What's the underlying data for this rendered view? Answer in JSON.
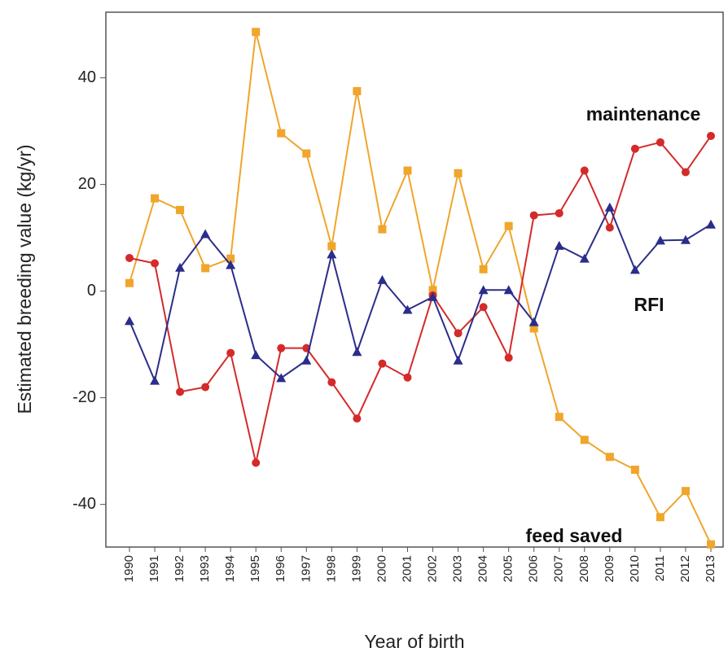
{
  "chart_data": {
    "type": "line",
    "x_label": "Year of birth",
    "y_label": "Estimated breeding value (kg/yr)",
    "categories": [
      "1990",
      "1991",
      "1992",
      "1993",
      "1994",
      "1995",
      "1996",
      "1997",
      "1998",
      "1999",
      "2000",
      "2001",
      "2002",
      "2003",
      "2004",
      "2005",
      "2006",
      "2007",
      "2008",
      "2009",
      "2010",
      "2011",
      "2012",
      "2013"
    ],
    "series": [
      {
        "name": "feed saved",
        "color": "#f0a52c",
        "marker": "square",
        "values": [
          1.5,
          17.4,
          15.2,
          4.3,
          6.1,
          48.6,
          29.6,
          25.8,
          8.4,
          37.5,
          11.6,
          22.6,
          0.2,
          22.1,
          4.1,
          12.2,
          -7,
          -23.6,
          -27.9,
          -31.1,
          -33.5,
          -42.4,
          -37.5,
          -47.5
        ]
      },
      {
        "name": "maintenance",
        "color": "#d42a2a",
        "marker": "circle",
        "values": [
          6.2,
          5.2,
          -18.9,
          -18,
          -11.6,
          -32.2,
          -10.7,
          -10.7,
          -17.1,
          -23.9,
          -13.6,
          -16.2,
          -0.8,
          -7.9,
          -3,
          -12.5,
          14.2,
          14.6,
          22.6,
          11.9,
          26.7,
          27.9,
          22.3,
          29.1
        ]
      },
      {
        "name": "RFI",
        "color": "#2b2d8a",
        "marker": "triangle",
        "values": [
          -5.6,
          -16.8,
          4.4,
          10.7,
          4.9,
          -12,
          -16.3,
          -13,
          6.9,
          -11.4,
          2.1,
          -3.5,
          -1.1,
          -13,
          0.2,
          0.2,
          -5.8,
          8.5,
          6.1,
          15.7,
          4,
          9.5,
          9.6,
          12.5
        ]
      }
    ],
    "ylim": [
      -48,
      52.3
    ],
    "yticks": [
      -40,
      -20,
      0,
      20,
      40
    ],
    "grid": false
  }
}
